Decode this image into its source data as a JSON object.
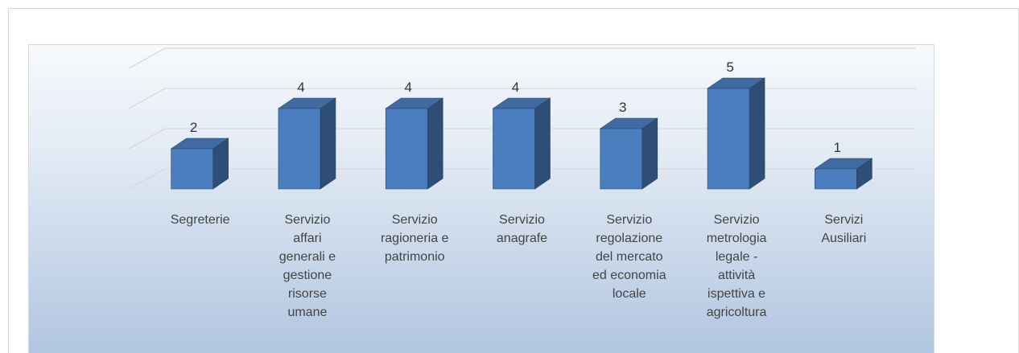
{
  "chart_data": {
    "type": "bar3d",
    "categories": [
      "Segreterie",
      "Servizio affari generali e gestione risorse umane",
      "Servizio ragioneria e patrimonio",
      "Servizio anagrafe",
      "Servizio regolazione del mercato ed economia locale",
      "Servizio metrologia legale - attività ispettiva e agricoltura",
      "Servizi Ausiliari"
    ],
    "values": [
      2,
      4,
      4,
      4,
      3,
      5,
      1
    ],
    "color": "#4a7ebf",
    "ylim": [
      0,
      6
    ],
    "yticks": [
      0,
      2,
      4,
      6
    ],
    "grid": true
  }
}
